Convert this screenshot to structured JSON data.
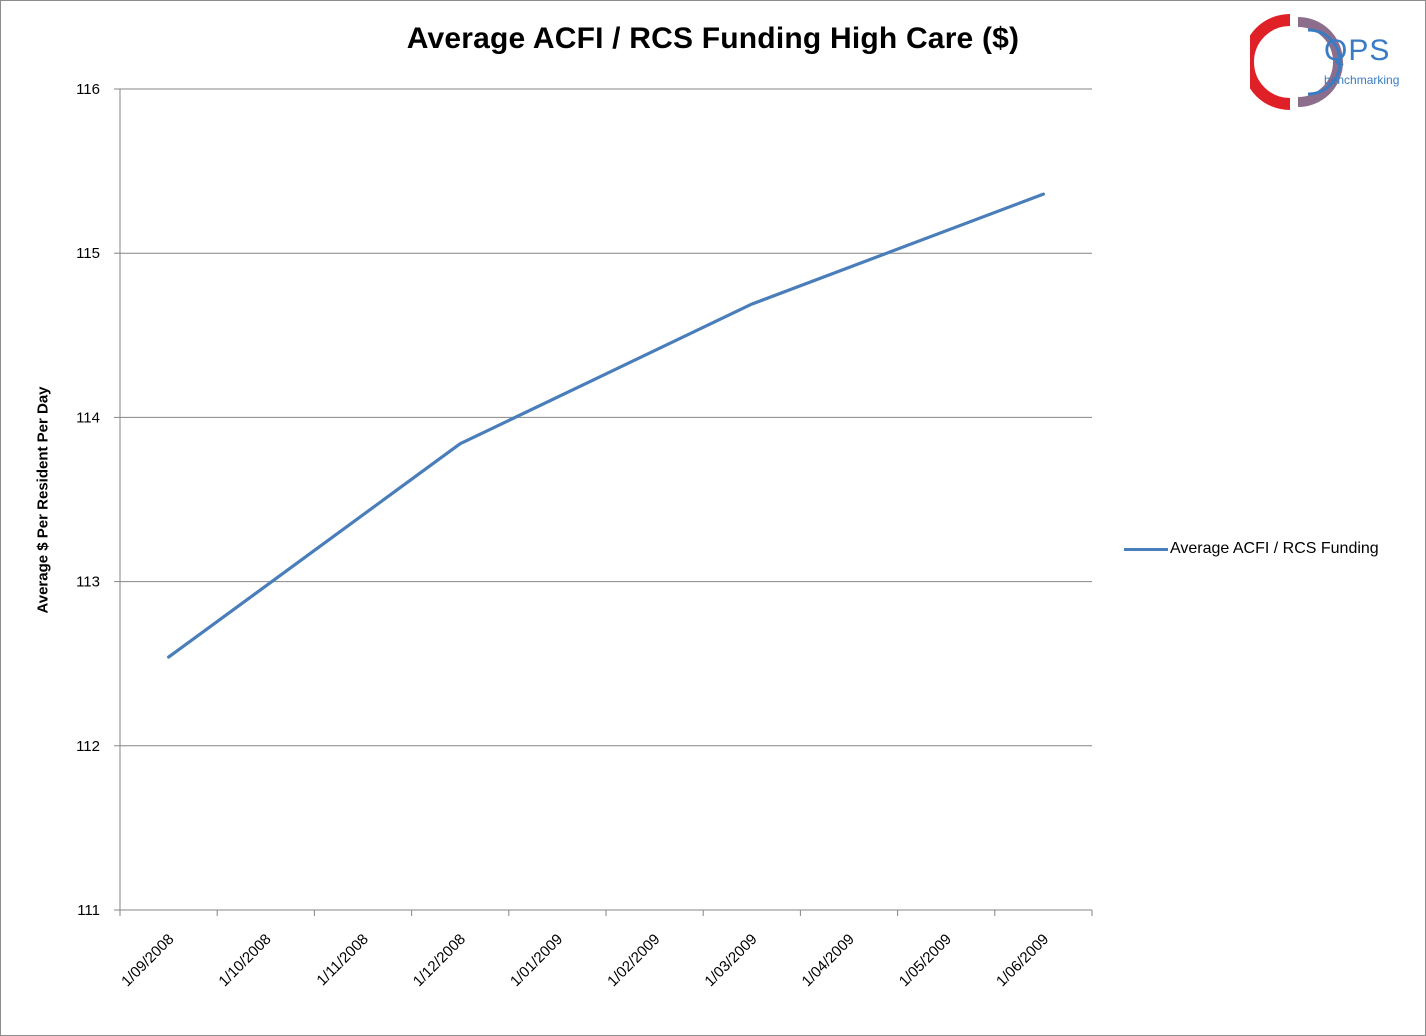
{
  "chart_data": {
    "type": "line",
    "title": "Average ACFI / RCS Funding High Care ($)",
    "xlabel": "",
    "ylabel": "Average $ Per Resident Per Day",
    "ylim": [
      111,
      116
    ],
    "yticks": [
      "111",
      "112",
      "113",
      "114",
      "115",
      "116"
    ],
    "categories": [
      "1/09/2008",
      "1/10/2008",
      "1/11/2008",
      "1/12/2008",
      "1/01/2009",
      "1/02/2009",
      "1/03/2009",
      "1/04/2009",
      "1/05/2009",
      "1/06/2009"
    ],
    "series": [
      {
        "name": "Average ACFI / RCS Funding",
        "color": "#4a7ebb",
        "points": [
          {
            "x": "1/09/2008",
            "y": 112.54
          },
          {
            "x": "1/12/2008",
            "y": 113.84
          },
          {
            "x": "1/03/2009",
            "y": 114.69
          },
          {
            "x": "1/06/2009",
            "y": 115.36
          }
        ]
      }
    ],
    "grid": "horizontal",
    "legend_position": "right"
  },
  "logo": {
    "text": "QPS",
    "subtext": "benchmarking",
    "colors": [
      "#e02027",
      "#8c6e8c",
      "#3a7cc4"
    ]
  }
}
